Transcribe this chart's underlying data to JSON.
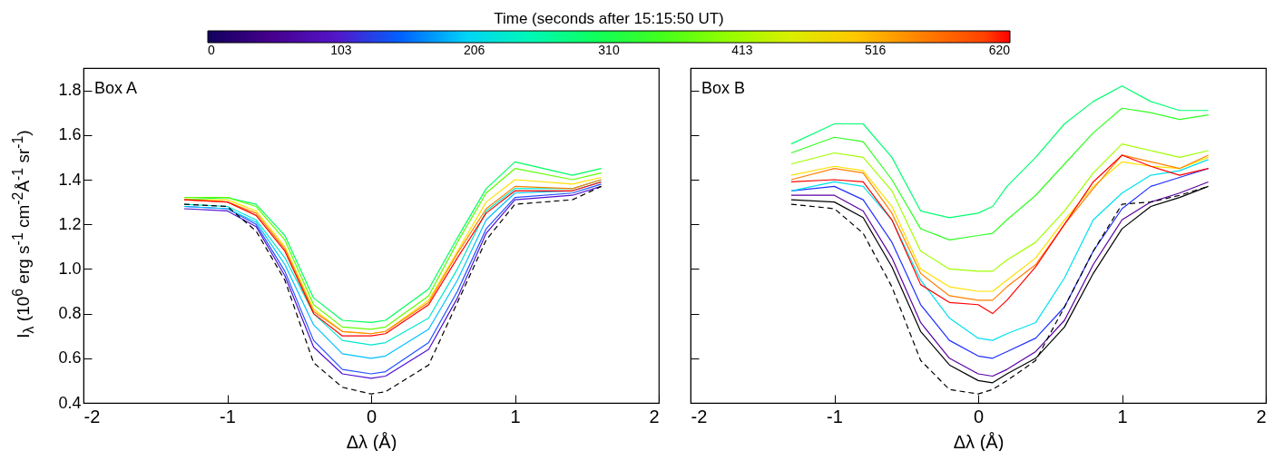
{
  "chart_data": [
    {
      "type": "line",
      "annotations": [
        "Box A"
      ],
      "xlabel": "Δλ (Å)",
      "ylabel": "I$_{λ}$ (10$^{6}$ erg s$^{-1}$ cm$^{-2}$Å$^{-1}$ sr$^{-1}$)",
      "x": [
        -1.3,
        -1.0,
        -0.8,
        -0.6,
        -0.4,
        -0.2,
        0,
        0.1,
        0.4,
        0.6,
        0.8,
        1.0,
        1.4,
        1.6
      ],
      "xlim": [
        -2,
        2
      ],
      "xticks": [
        -2,
        -1,
        0,
        1,
        2
      ],
      "ylim": [
        0.4,
        1.9
      ],
      "yticks": [
        0.4,
        0.6,
        0.8,
        {
          "value": 1,
          "label": "1.0"
        },
        1.2,
        1.4,
        1.6,
        1.8
      ],
      "series": [
        {
          "color": "#5010d0",
          "values": [
            1.27,
            1.26,
            1.19,
            0.97,
            0.65,
            0.53,
            0.51,
            0.52,
            0.64,
            0.87,
            1.16,
            1.31,
            1.33,
            1.37
          ]
        },
        {
          "color": "#2050ff",
          "values": [
            1.28,
            1.27,
            1.2,
            0.99,
            0.68,
            0.55,
            0.53,
            0.54,
            0.67,
            0.9,
            1.18,
            1.32,
            1.34,
            1.38
          ]
        },
        {
          "color": "#00c0ff",
          "values": [
            1.28,
            1.27,
            1.21,
            1.02,
            0.75,
            0.62,
            0.6,
            0.61,
            0.73,
            0.95,
            1.22,
            1.34,
            1.35,
            1.39
          ]
        },
        {
          "color": "#00e8d0",
          "values": [
            1.29,
            1.28,
            1.22,
            1.05,
            0.8,
            0.68,
            0.66,
            0.67,
            0.78,
            1.0,
            1.26,
            1.36,
            1.36,
            1.4
          ]
        },
        {
          "color": "#00ff60",
          "values": [
            1.31,
            1.32,
            1.29,
            1.15,
            0.87,
            0.77,
            0.76,
            0.77,
            0.91,
            1.14,
            1.36,
            1.48,
            1.42,
            1.45
          ]
        },
        {
          "color": "#60ff00",
          "values": [
            1.32,
            1.32,
            1.28,
            1.13,
            0.84,
            0.74,
            0.73,
            0.74,
            0.88,
            1.12,
            1.34,
            1.45,
            1.4,
            1.43
          ]
        },
        {
          "color": "#ffe000",
          "values": [
            1.31,
            1.31,
            1.26,
            1.1,
            0.82,
            0.72,
            0.71,
            0.72,
            0.86,
            1.08,
            1.3,
            1.4,
            1.38,
            1.41
          ]
        },
        {
          "color": "#ff8000",
          "values": [
            1.31,
            1.3,
            1.25,
            1.09,
            0.81,
            0.72,
            0.71,
            0.72,
            0.85,
            1.07,
            1.27,
            1.37,
            1.36,
            1.4
          ]
        },
        {
          "color": "#ff0000",
          "values": [
            1.31,
            1.3,
            1.24,
            1.08,
            0.8,
            0.7,
            0.7,
            0.71,
            0.84,
            1.05,
            1.25,
            1.35,
            1.35,
            1.39
          ]
        },
        {
          "color": "#000000",
          "line_style": "dashed",
          "values": [
            1.29,
            1.28,
            1.17,
            0.95,
            0.58,
            0.47,
            0.44,
            0.45,
            0.57,
            0.85,
            1.13,
            1.29,
            1.31,
            1.37
          ]
        }
      ]
    },
    {
      "type": "line",
      "annotations": [
        "Box B"
      ],
      "xlabel": "Δλ (Å)",
      "tick_labels": "x",
      "clabel": "Time (seconds after 15:15:50 UT)",
      "clim": [
        0,
        620
      ],
      "cticks": [
        0,
        103,
        206,
        310,
        413,
        516,
        620
      ],
      "x": [
        -1.3,
        -1.0,
        -0.8,
        -0.6,
        -0.4,
        -0.2,
        0,
        0.1,
        0.2,
        0.4,
        0.6,
        0.8,
        1.0,
        1.2,
        1.4,
        1.6
      ],
      "xlim": [
        -2,
        2
      ],
      "xticks": [
        -2,
        -1,
        0,
        1,
        2
      ],
      "ylim": [
        0.4,
        1.9
      ],
      "yticks": [
        0.4,
        0.6,
        0.8,
        1,
        1.2,
        1.4,
        1.6,
        1.8
      ],
      "series": [
        {
          "color": "#000000",
          "values": [
            1.31,
            1.3,
            1.23,
            1.01,
            0.72,
            0.57,
            0.5,
            0.49,
            0.53,
            0.6,
            0.74,
            0.98,
            1.18,
            1.28,
            1.32,
            1.37
          ]
        },
        {
          "color": "#5a00a0",
          "values": [
            1.33,
            1.33,
            1.26,
            1.05,
            0.76,
            0.6,
            0.53,
            0.52,
            0.55,
            0.63,
            0.77,
            1.02,
            1.22,
            1.3,
            1.34,
            1.39
          ]
        },
        {
          "color": "#2030ff",
          "values": [
            1.35,
            1.37,
            1.31,
            1.12,
            0.84,
            0.68,
            0.61,
            0.6,
            0.63,
            0.69,
            0.83,
            1.08,
            1.27,
            1.37,
            1.41,
            1.45
          ]
        },
        {
          "color": "#00e0f0",
          "values": [
            1.35,
            1.39,
            1.37,
            1.22,
            0.95,
            0.78,
            0.69,
            0.68,
            0.71,
            0.76,
            0.96,
            1.22,
            1.34,
            1.42,
            1.44,
            1.49
          ]
        },
        {
          "color": "#00ff70",
          "values": [
            1.56,
            1.65,
            1.65,
            1.5,
            1.26,
            1.23,
            1.25,
            1.28,
            1.37,
            1.5,
            1.65,
            1.75,
            1.82,
            1.75,
            1.71,
            1.71
          ]
        },
        {
          "color": "#30ff20",
          "values": [
            1.52,
            1.59,
            1.57,
            1.4,
            1.18,
            1.13,
            1.15,
            1.16,
            1.22,
            1.33,
            1.47,
            1.61,
            1.72,
            1.7,
            1.67,
            1.69
          ]
        },
        {
          "color": "#a0ff00",
          "values": [
            1.47,
            1.52,
            1.5,
            1.35,
            1.08,
            1.0,
            0.99,
            0.99,
            1.04,
            1.12,
            1.26,
            1.43,
            1.56,
            1.53,
            1.5,
            1.53
          ]
        },
        {
          "color": "#ffe000",
          "values": [
            1.42,
            1.46,
            1.44,
            1.28,
            1.0,
            0.92,
            0.9,
            0.9,
            0.95,
            1.05,
            1.22,
            1.37,
            1.48,
            1.46,
            1.45,
            1.5
          ]
        },
        {
          "color": "#ff8000",
          "values": [
            1.4,
            1.45,
            1.43,
            1.25,
            0.98,
            0.88,
            0.86,
            0.86,
            0.92,
            1.02,
            1.2,
            1.36,
            1.51,
            1.48,
            1.45,
            1.51
          ]
        },
        {
          "color": "#ff0000",
          "values": [
            1.39,
            1.4,
            1.39,
            1.22,
            0.93,
            0.85,
            0.84,
            0.8,
            0.86,
            1.01,
            1.2,
            1.39,
            1.51,
            1.46,
            1.42,
            1.45
          ]
        },
        {
          "color": "#000000",
          "line_style": "dashed",
          "values": [
            1.29,
            1.27,
            1.16,
            0.92,
            0.59,
            0.46,
            0.44,
            0.46,
            0.5,
            0.59,
            0.83,
            1.08,
            1.29,
            1.3,
            1.33,
            1.37
          ]
        }
      ]
    }
  ]
}
